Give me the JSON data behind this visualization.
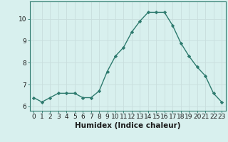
{
  "x": [
    0,
    1,
    2,
    3,
    4,
    5,
    6,
    7,
    8,
    9,
    10,
    11,
    12,
    13,
    14,
    15,
    16,
    17,
    18,
    19,
    20,
    21,
    22,
    23
  ],
  "y": [
    6.4,
    6.2,
    6.4,
    6.6,
    6.6,
    6.6,
    6.4,
    6.4,
    6.7,
    7.6,
    8.3,
    8.7,
    9.4,
    9.9,
    10.3,
    10.3,
    10.3,
    9.7,
    8.9,
    8.3,
    7.8,
    7.4,
    6.6,
    6.2
  ],
  "line_color": "#2d7a6e",
  "marker": "D",
  "marker_size": 2.2,
  "bg_color": "#d8f0ee",
  "grid_color": "#c8dedd",
  "xlabel": "Humidex (Indice chaleur)",
  "xlabel_fontsize": 7.5,
  "xlabel_fontweight": "bold",
  "yticks": [
    6,
    7,
    8,
    9,
    10
  ],
  "xticks": [
    0,
    1,
    2,
    3,
    4,
    5,
    6,
    7,
    8,
    9,
    10,
    11,
    12,
    13,
    14,
    15,
    16,
    17,
    18,
    19,
    20,
    21,
    22,
    23
  ],
  "ylim": [
    5.8,
    10.8
  ],
  "xlim": [
    -0.5,
    23.5
  ],
  "tick_fontsize": 6.5,
  "spine_color": "#2d7a6e",
  "linewidth": 1.0
}
